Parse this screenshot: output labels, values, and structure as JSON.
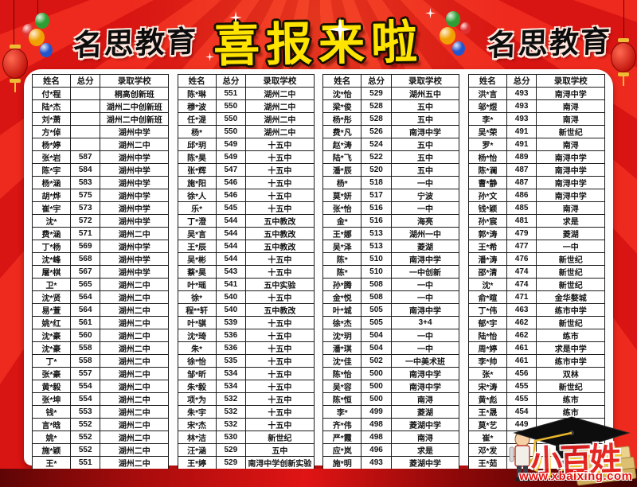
{
  "poster": {
    "brand_left": "名思教育",
    "brand_right": "名思教育",
    "title": "喜报来啦"
  },
  "table": {
    "headers": {
      "name": "姓名",
      "score": "总分",
      "school": "录取学校"
    }
  },
  "columns": [
    {
      "rows": [
        [
          "付*程",
          "",
          "桐高创新班"
        ],
        [
          "陆*杰",
          "",
          "湖州二中创新班"
        ],
        [
          "刘*萧",
          "",
          "湖州二中创新班"
        ],
        [
          "方*倬",
          "",
          "湖州中学"
        ],
        [
          "杨*婷",
          "",
          "湖州二中"
        ],
        [
          "张*岩",
          "587",
          "湖州中学"
        ],
        [
          "陈*宇",
          "584",
          "湖州中学"
        ],
        [
          "杨*涵",
          "583",
          "湖州中学"
        ],
        [
          "胡*烨",
          "575",
          "湖州中学"
        ],
        [
          "崔*宇",
          "573",
          "湖州中学"
        ],
        [
          "沈*",
          "572",
          "湖州中学"
        ],
        [
          "费*涵",
          "571",
          "湖州二中"
        ],
        [
          "丁*杨",
          "569",
          "湖州中学"
        ],
        [
          "沈*峰",
          "568",
          "湖州中学"
        ],
        [
          "屠*棋",
          "567",
          "湖州中学"
        ],
        [
          "卫*",
          "565",
          "湖州二中"
        ],
        [
          "沈*贤",
          "564",
          "湖州二中"
        ],
        [
          "易*萱",
          "564",
          "湖州二中"
        ],
        [
          "姚*红",
          "561",
          "湖州二中"
        ],
        [
          "沈*豪",
          "560",
          "湖州二中"
        ],
        [
          "沈*豪",
          "558",
          "湖州二中"
        ],
        [
          "丁*",
          "558",
          "湖州二中"
        ],
        [
          "张*豪",
          "557",
          "湖州二中"
        ],
        [
          "黄*毅",
          "554",
          "湖州二中"
        ],
        [
          "张*坤",
          "554",
          "湖州二中"
        ],
        [
          "钱*",
          "553",
          "湖州二中"
        ],
        [
          "言*晗",
          "552",
          "湖州二中"
        ],
        [
          "姚*",
          "552",
          "湖州二中"
        ],
        [
          "施*颖",
          "552",
          "湖州二中"
        ],
        [
          "王*",
          "551",
          "湖州二中"
        ],
        [
          "施*洋",
          "551",
          "湖州二中"
        ]
      ]
    },
    {
      "rows": [
        [
          "陈*琳",
          "551",
          "湖州二中"
        ],
        [
          "穆*波",
          "550",
          "湖州二中"
        ],
        [
          "任*湜",
          "550",
          "湖州二中"
        ],
        [
          "杨*",
          "550",
          "湖州二中"
        ],
        [
          "邱*玥",
          "549",
          "十五中"
        ],
        [
          "陈*昊",
          "549",
          "十五中"
        ],
        [
          "张*辉",
          "547",
          "十五中"
        ],
        [
          "施*阳",
          "546",
          "十五中"
        ],
        [
          "徐*人",
          "546",
          "十五中"
        ],
        [
          "乐*",
          "545",
          "十五中"
        ],
        [
          "丁*澄",
          "544",
          "五中教改"
        ],
        [
          "吴*言",
          "544",
          "五中教改"
        ],
        [
          "王*辰",
          "544",
          "五中教改"
        ],
        [
          "吴*彬",
          "544",
          "十五中"
        ],
        [
          "蔡*昊",
          "543",
          "十五中"
        ],
        [
          "叶*瑶",
          "541",
          "五中实验"
        ],
        [
          "徐*",
          "540",
          "十五中"
        ],
        [
          "程**轩",
          "540",
          "五中教改"
        ],
        [
          "叶*骐",
          "539",
          "十五中"
        ],
        [
          "沈*琦",
          "536",
          "十五中"
        ],
        [
          "朱*",
          "536",
          "十五中"
        ],
        [
          "徐*怡",
          "535",
          "十五中"
        ],
        [
          "邹*昕",
          "534",
          "十五中"
        ],
        [
          "朱*毅",
          "534",
          "十五中"
        ],
        [
          "项*为",
          "532",
          "十五中"
        ],
        [
          "朱*宇",
          "532",
          "十五中"
        ],
        [
          "宋*杰",
          "532",
          "十五中"
        ],
        [
          "林*洁",
          "530",
          "新世纪"
        ],
        [
          "汪*涵",
          "529",
          "五中"
        ],
        [
          "王*婷",
          "529",
          "南浔中学创新实验"
        ],
        [
          "吴*怡",
          "529",
          "五中"
        ]
      ]
    },
    {
      "rows": [
        [
          "沈*怡",
          "529",
          "湖州五中"
        ],
        [
          "梁*俊",
          "528",
          "五中"
        ],
        [
          "杨*彤",
          "528",
          "五中"
        ],
        [
          "费*凡",
          "526",
          "南浔中学"
        ],
        [
          "赵*涛",
          "524",
          "五中"
        ],
        [
          "陆*飞",
          "522",
          "五中"
        ],
        [
          "潘*辰",
          "520",
          "五中"
        ],
        [
          "杨*",
          "518",
          "一中"
        ],
        [
          "莫*妍",
          "517",
          "宁波"
        ],
        [
          "张*怡",
          "516",
          "一中"
        ],
        [
          "金*",
          "516",
          "海亮"
        ],
        [
          "王*娜",
          "513",
          "湖州一中"
        ],
        [
          "吴*泽",
          "513",
          "菱湖"
        ],
        [
          "陈*",
          "510",
          "南浔中学"
        ],
        [
          "陈*",
          "510",
          "一中创新"
        ],
        [
          "孙*腾",
          "508",
          "一中"
        ],
        [
          "金*悦",
          "508",
          "一中"
        ],
        [
          "叶*城",
          "505",
          "南浔中学"
        ],
        [
          "徐*杰",
          "505",
          "3+4"
        ],
        [
          "沈*玥",
          "504",
          "一中"
        ],
        [
          "潘*琪",
          "504",
          "一中"
        ],
        [
          "沈*佳",
          "502",
          "一中美术班"
        ],
        [
          "陈*怡",
          "500",
          "南浔中学"
        ],
        [
          "吴*容",
          "500",
          "南浔中学"
        ],
        [
          "陈*恒",
          "500",
          "南浔"
        ],
        [
          "李*",
          "499",
          "菱湖"
        ],
        [
          "齐*伟",
          "498",
          "菱湖中学"
        ],
        [
          "严*霞",
          "498",
          "南浔"
        ],
        [
          "应*岚",
          "496",
          "求是"
        ],
        [
          "施*明",
          "493",
          "菱湖中学"
        ],
        [
          "",
          "",
          ""
        ]
      ]
    },
    {
      "rows": [
        [
          "洪*言",
          "493",
          "南浔中学"
        ],
        [
          "邬*煜",
          "493",
          "南浔"
        ],
        [
          "李*",
          "493",
          "南浔"
        ],
        [
          "吴*荣",
          "491",
          "新世纪"
        ],
        [
          "罗*",
          "491",
          "南浔"
        ],
        [
          "杨*怡",
          "489",
          "南浔中学"
        ],
        [
          "陈*澜",
          "487",
          "南浔中学"
        ],
        [
          "曹*静",
          "487",
          "南浔中学"
        ],
        [
          "孙*文",
          "486",
          "南浔中学"
        ],
        [
          "钱*颖",
          "485",
          "南浔"
        ],
        [
          "孙*宸",
          "481",
          "求是"
        ],
        [
          "郭*涛",
          "479",
          "菱湖"
        ],
        [
          "王*希",
          "477",
          "一中"
        ],
        [
          "潘*涛",
          "476",
          "新世纪"
        ],
        [
          "邵*清",
          "474",
          "新世纪"
        ],
        [
          "沈*",
          "474",
          "新世纪"
        ],
        [
          "俞*暄",
          "471",
          "金华婺城"
        ],
        [
          "丁*伟",
          "463",
          "练市中学"
        ],
        [
          "郁*宇",
          "462",
          "新世纪"
        ],
        [
          "陆*怡",
          "462",
          "练市"
        ],
        [
          "周*婷",
          "461",
          "求是中学"
        ],
        [
          "李*帅",
          "461",
          "练市中学"
        ],
        [
          "张*",
          "456",
          "双林"
        ],
        [
          "宋*涛",
          "455",
          "新世纪"
        ],
        [
          "黄*彪",
          "455",
          "练市"
        ],
        [
          "王*晟",
          "454",
          "练市"
        ],
        [
          "莫*艺",
          "449",
          "双林"
        ],
        [
          "崔*",
          "448",
          "帕丁顿"
        ],
        [
          "邓*发",
          "443",
          "双林"
        ],
        [
          "王*茹",
          "441",
          "帕丁顿"
        ],
        [
          "丁*康",
          "439",
          "求是高中"
        ]
      ]
    }
  ],
  "watermark": {
    "logo": "小百姓",
    "site": "www.xbaixing.com"
  },
  "colors": {
    "background_red": "#d81512",
    "ray_red": "#ee2a1e",
    "title_yellow": "#ffe400",
    "brand_black": "#0d0d0d",
    "panel_white": "#fdfdfd",
    "band_dark": "#5e0505",
    "watermark_red": "#e41c1c"
  }
}
